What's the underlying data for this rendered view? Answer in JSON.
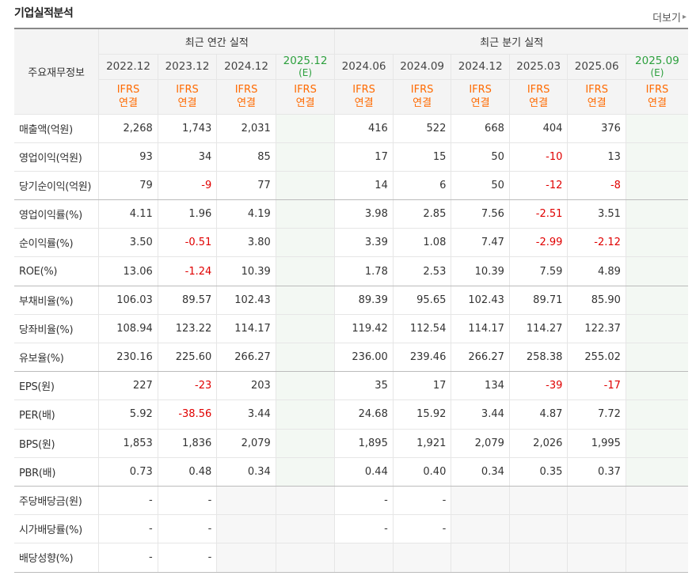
{
  "title": "기업실적분석",
  "more_label": "더보기",
  "annual_header": "최근 연간 실적",
  "quarter_header": "최근 분기 실적",
  "label_header": "주요재무정보",
  "annual_periods": [
    "2022.12",
    "2023.12",
    "2024.12",
    "2025.12"
  ],
  "annual_estimate_mark": "(E)",
  "quarter_periods": [
    "2024.06",
    "2024.09",
    "2024.12",
    "2025.03",
    "2025.06",
    "2025.09"
  ],
  "quarter_estimate_mark": "(E)",
  "ifrs_line1": "IFRS",
  "ifrs_line2": "연결",
  "colors": {
    "accent": "#ff6a00",
    "estimate": "#2da03e",
    "negative": "#e00000"
  },
  "rows": [
    {
      "label": "매출액(억원)",
      "values": [
        "2,268",
        "1,743",
        "2,031",
        "",
        "416",
        "522",
        "668",
        "404",
        "376",
        ""
      ]
    },
    {
      "label": "영업이익(억원)",
      "values": [
        "93",
        "34",
        "85",
        "",
        "17",
        "15",
        "50",
        "-10",
        "13",
        ""
      ]
    },
    {
      "label": "당기순이익(억원)",
      "values": [
        "79",
        "-9",
        "77",
        "",
        "14",
        "6",
        "50",
        "-12",
        "-8",
        ""
      ]
    },
    {
      "label": "영업이익률(%)",
      "values": [
        "4.11",
        "1.96",
        "4.19",
        "",
        "3.98",
        "2.85",
        "7.56",
        "-2.51",
        "3.51",
        ""
      ]
    },
    {
      "label": "순이익률(%)",
      "values": [
        "3.50",
        "-0.51",
        "3.80",
        "",
        "3.39",
        "1.08",
        "7.47",
        "-2.99",
        "-2.12",
        ""
      ]
    },
    {
      "label": "ROE(%)",
      "values": [
        "13.06",
        "-1.24",
        "10.39",
        "",
        "1.78",
        "2.53",
        "10.39",
        "7.59",
        "4.89",
        ""
      ]
    },
    {
      "label": "부채비율(%)",
      "values": [
        "106.03",
        "89.57",
        "102.43",
        "",
        "89.39",
        "95.65",
        "102.43",
        "89.71",
        "85.90",
        ""
      ]
    },
    {
      "label": "당좌비율(%)",
      "values": [
        "108.94",
        "123.22",
        "114.17",
        "",
        "119.42",
        "112.54",
        "114.17",
        "114.27",
        "122.37",
        ""
      ]
    },
    {
      "label": "유보율(%)",
      "values": [
        "230.16",
        "225.60",
        "266.27",
        "",
        "236.00",
        "239.46",
        "266.27",
        "258.38",
        "255.02",
        ""
      ]
    },
    {
      "label": "EPS(원)",
      "values": [
        "227",
        "-23",
        "203",
        "",
        "35",
        "17",
        "134",
        "-39",
        "-17",
        ""
      ]
    },
    {
      "label": "PER(배)",
      "values": [
        "5.92",
        "-38.56",
        "3.44",
        "",
        "24.68",
        "15.92",
        "3.44",
        "4.87",
        "7.72",
        ""
      ]
    },
    {
      "label": "BPS(원)",
      "values": [
        "1,853",
        "1,836",
        "2,079",
        "",
        "1,895",
        "1,921",
        "2,079",
        "2,026",
        "1,995",
        ""
      ]
    },
    {
      "label": "PBR(배)",
      "values": [
        "0.73",
        "0.48",
        "0.34",
        "",
        "0.44",
        "0.40",
        "0.34",
        "0.35",
        "0.37",
        ""
      ]
    },
    {
      "label": "주당배당금(원)",
      "values": [
        "-",
        "-",
        "",
        "",
        "-",
        "-",
        "",
        "",
        "",
        ""
      ]
    },
    {
      "label": "시가배당률(%)",
      "values": [
        "-",
        "-",
        "",
        "",
        "-",
        "-",
        "",
        "",
        "",
        ""
      ]
    },
    {
      "label": "배당성향(%)",
      "values": [
        "-",
        "-",
        "",
        "",
        "",
        "",
        "",
        "",
        "",
        ""
      ]
    }
  ]
}
